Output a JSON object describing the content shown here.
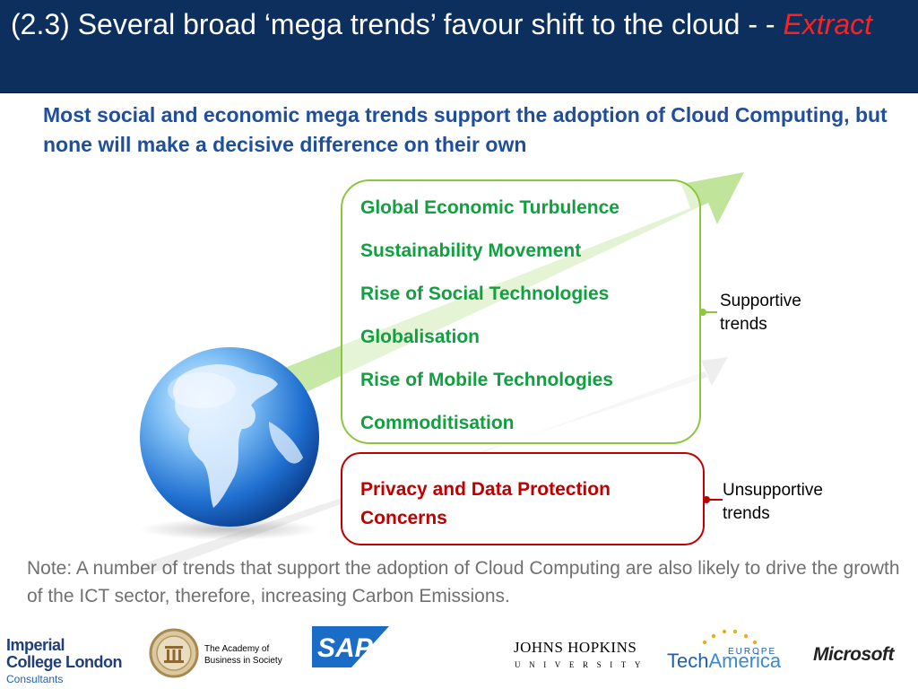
{
  "header": {
    "title": "(2.3) Several broad ‘mega trends’ favour shift to the cloud - -",
    "title_highlight": "Extract"
  },
  "subtitle": "Most social and economic mega trends support the adoption of Cloud Computing, but none will make a decisive difference on their own",
  "supportive": {
    "items": [
      "Global Economic Turbulence",
      "Sustainability Movement",
      "Rise of Social Technologies",
      "Globalisation",
      "Rise of Mobile Technologies",
      "Commoditisation"
    ],
    "label_line1": "Supportive",
    "label_line2": "trends",
    "color": "#10a040",
    "border_color": "#8cc63f"
  },
  "unsupportive": {
    "text": "Privacy and Data Protection Concerns",
    "label_line1": "Unsupportive",
    "label_line2": "trends",
    "color": "#c00000"
  },
  "note": "Note: A number of trends that support the adoption of Cloud Computing are also likely to drive the growth of the ICT sector, therefore, increasing Carbon Emissions.",
  "logos": {
    "imperial_name": "Imperial College London",
    "imperial_sub": "Consultants",
    "academy_line1": "The Academy of",
    "academy_line2": "Business in Society",
    "sap": "SAP",
    "jhu_name": "JOHNS HOPKINS",
    "jhu_sub": "UNIVERSITY",
    "techamerica_tech": "Tech",
    "techamerica_america": "America",
    "techamerica_europe": "EUROPE",
    "microsoft": "Microsoft"
  },
  "colors": {
    "header_bg": "#0d2f5e",
    "accent_blue": "#1f4e9c",
    "extract_red": "#ff2020"
  }
}
